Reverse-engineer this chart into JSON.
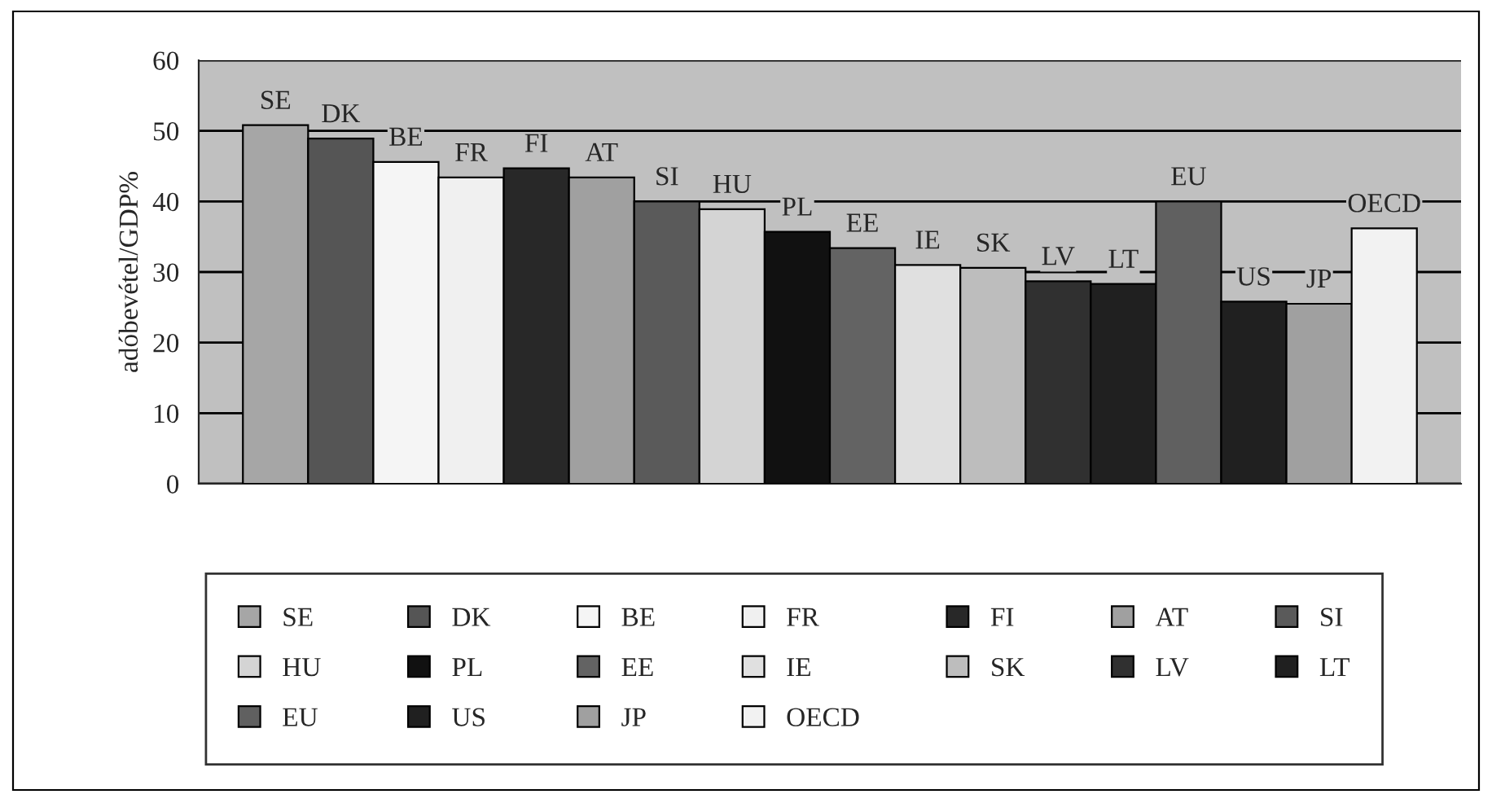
{
  "chart_data": {
    "type": "bar",
    "ylabel": "adóbevétel/GDP%",
    "categories": [
      null
    ],
    "ylim": [
      0,
      60
    ],
    "yticks": [
      0,
      10,
      20,
      30,
      40,
      50,
      60
    ],
    "grid": "y",
    "legend": "bottom",
    "series": [
      {
        "name": "SE",
        "color": "#a6a6a6",
        "values": [
          50.8
        ]
      },
      {
        "name": "DK",
        "color": "#555555",
        "values": [
          48.9
        ]
      },
      {
        "name": "BE",
        "color": "#f5f5f5",
        "values": [
          45.6
        ]
      },
      {
        "name": "FR",
        "color": "#f0f0f0",
        "values": [
          43.4
        ]
      },
      {
        "name": "FI",
        "color": "#282828",
        "values": [
          44.7
        ]
      },
      {
        "name": "AT",
        "color": "#a0a0a0",
        "values": [
          43.4
        ]
      },
      {
        "name": "SI",
        "color": "#5a5a5a",
        "values": [
          40.0
        ]
      },
      {
        "name": "HU",
        "color": "#d4d4d4",
        "values": [
          38.9
        ]
      },
      {
        "name": "PL",
        "color": "#111111",
        "values": [
          35.7
        ]
      },
      {
        "name": "EE",
        "color": "#636363",
        "values": [
          33.4
        ]
      },
      {
        "name": "IE",
        "color": "#e0e0e0",
        "values": [
          31.0
        ]
      },
      {
        "name": "SK",
        "color": "#bdbdbd",
        "values": [
          30.6
        ]
      },
      {
        "name": "LV",
        "color": "#303030",
        "values": [
          28.7
        ]
      },
      {
        "name": "LT",
        "color": "#202020",
        "values": [
          28.3
        ]
      },
      {
        "name": "EU",
        "color": "#606060",
        "values": [
          40.0
        ]
      },
      {
        "name": "US",
        "color": "#202020",
        "values": [
          25.8
        ]
      },
      {
        "name": "JP",
        "color": "#a0a0a0",
        "values": [
          25.5
        ]
      },
      {
        "name": "OECD",
        "color": "#f2f2f2",
        "values": [
          36.2
        ]
      }
    ]
  }
}
